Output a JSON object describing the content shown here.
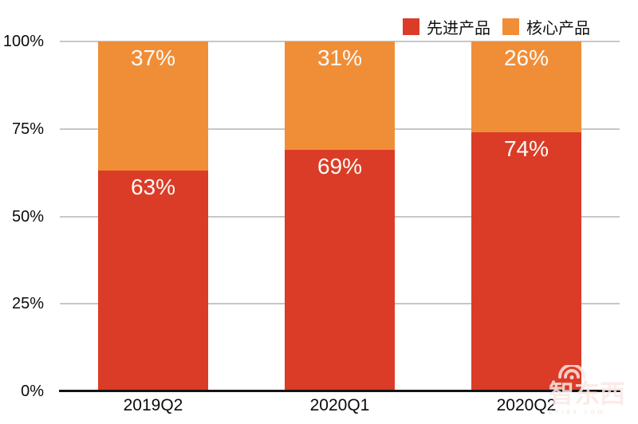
{
  "chart_data": {
    "type": "bar",
    "stacked": true,
    "title": "",
    "categories": [
      "2019Q2",
      "2020Q1",
      "2020Q2"
    ],
    "series": [
      {
        "name": "先进产品",
        "color": "#DB3C27",
        "values": [
          63,
          69,
          74
        ]
      },
      {
        "name": "核心产品",
        "color": "#F08E38",
        "values": [
          37,
          31,
          26
        ]
      }
    ],
    "value_suffix": "%",
    "ylim": [
      0,
      100
    ],
    "yticks": [
      0,
      25,
      50,
      75,
      100
    ],
    "ytick_labels": [
      "0%",
      "25%",
      "50%",
      "75%",
      "100%"
    ],
    "grid": true,
    "legend_position": "top-right"
  },
  "watermark": {
    "text": "智东西",
    "subtext": "zhidx.com"
  },
  "colors": {
    "background": "#FFFFFF",
    "grid": "#C7C7C7",
    "axis": "#141414",
    "tick_text": "#0B0B0B",
    "value_label": "#FBFBF8"
  }
}
